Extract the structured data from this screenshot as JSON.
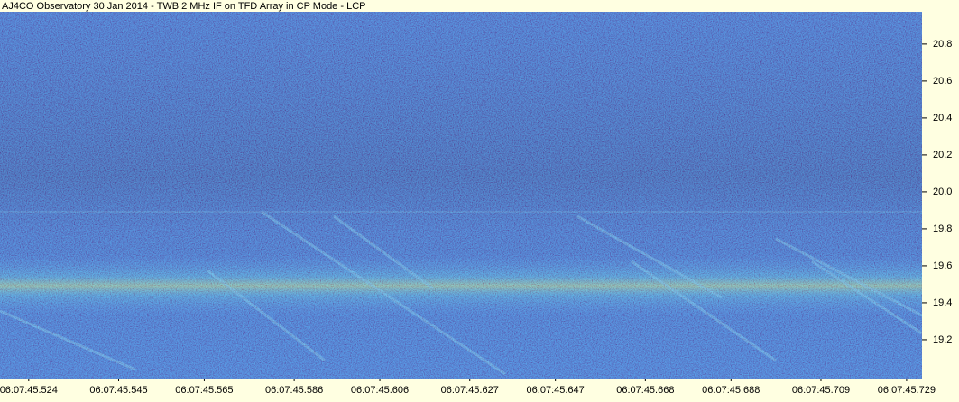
{
  "chart_data": {
    "type": "spectrogram",
    "title": "AJ4CO Observatory 30 Jan 2014 - TWB 2 MHz IF on TFD Array in CP Mode - LCP",
    "xlim": [
      45.5173,
      45.7326
    ],
    "xticks": [
      {
        "value": 45.524,
        "label": "06:07:45.524"
      },
      {
        "value": 45.545,
        "label": "06:07:45.545"
      },
      {
        "value": 45.565,
        "label": "06:07:45.565"
      },
      {
        "value": 45.586,
        "label": "06:07:45.586"
      },
      {
        "value": 45.606,
        "label": "06:07:45.606"
      },
      {
        "value": 45.627,
        "label": "06:07:45.627"
      },
      {
        "value": 45.647,
        "label": "06:07:45.647"
      },
      {
        "value": 45.668,
        "label": "06:07:45.668"
      },
      {
        "value": 45.688,
        "label": "06:07:45.688"
      },
      {
        "value": 45.709,
        "label": "06:07:45.709"
      },
      {
        "value": 45.729,
        "label": "06:07:45.729"
      }
    ],
    "ylim": [
      18.99,
      20.975
    ],
    "yticks": [
      19.2,
      19.4,
      19.6,
      19.8,
      {
        "value": 20,
        "label": "20.0"
      },
      20.2,
      20.4,
      20.6,
      20.8
    ]
  }
}
